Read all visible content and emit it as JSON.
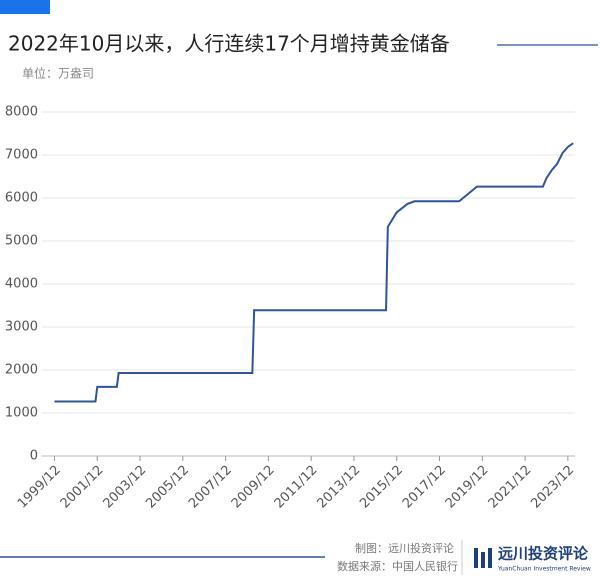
{
  "chart_data": {
    "type": "line",
    "title": "2022年10月以来，人行连续17个月增持黄金储备",
    "unit_label": "单位：万盎司",
    "x": [
      "1999/12",
      "2001/11",
      "2001/12",
      "2002/11",
      "2002/12",
      "2009/03",
      "2009/04",
      "2015/06",
      "2015/07",
      "2015/12",
      "2016/06",
      "2016/10",
      "2018/11",
      "2019/09",
      "2022/10",
      "2022/12",
      "2023/03",
      "2023/06",
      "2023/09",
      "2023/12",
      "2024/03"
    ],
    "series": [
      {
        "name": "黄金储备",
        "color": "#2f5597",
        "values": [
          1267,
          1267,
          1608,
          1608,
          1929,
          1929,
          3389,
          3389,
          5331,
          5666,
          5862,
          5924,
          5924,
          6264,
          6264,
          6464,
          6650,
          6795,
          7046,
          7187,
          7274
        ]
      }
    ],
    "xlim": [
      "1999/05",
      "2024/04"
    ],
    "xticks": [
      "1999/12",
      "2001/12",
      "2003/12",
      "2005/12",
      "2007/12",
      "2009/12",
      "2011/12",
      "2013/12",
      "2015/12",
      "2017/12",
      "2019/12",
      "2021/12",
      "2023/12"
    ],
    "ylim": [
      0,
      8000
    ],
    "yticks": [
      0,
      1000,
      2000,
      3000,
      4000,
      5000,
      6000,
      7000,
      8000
    ],
    "grid": true,
    "footer": {
      "made_by": "制图：远川投资评论",
      "source": "数据来源：中国人民银行",
      "logo": "远川投资评论",
      "logo_sub": "YuanChuan Investment Review"
    }
  }
}
